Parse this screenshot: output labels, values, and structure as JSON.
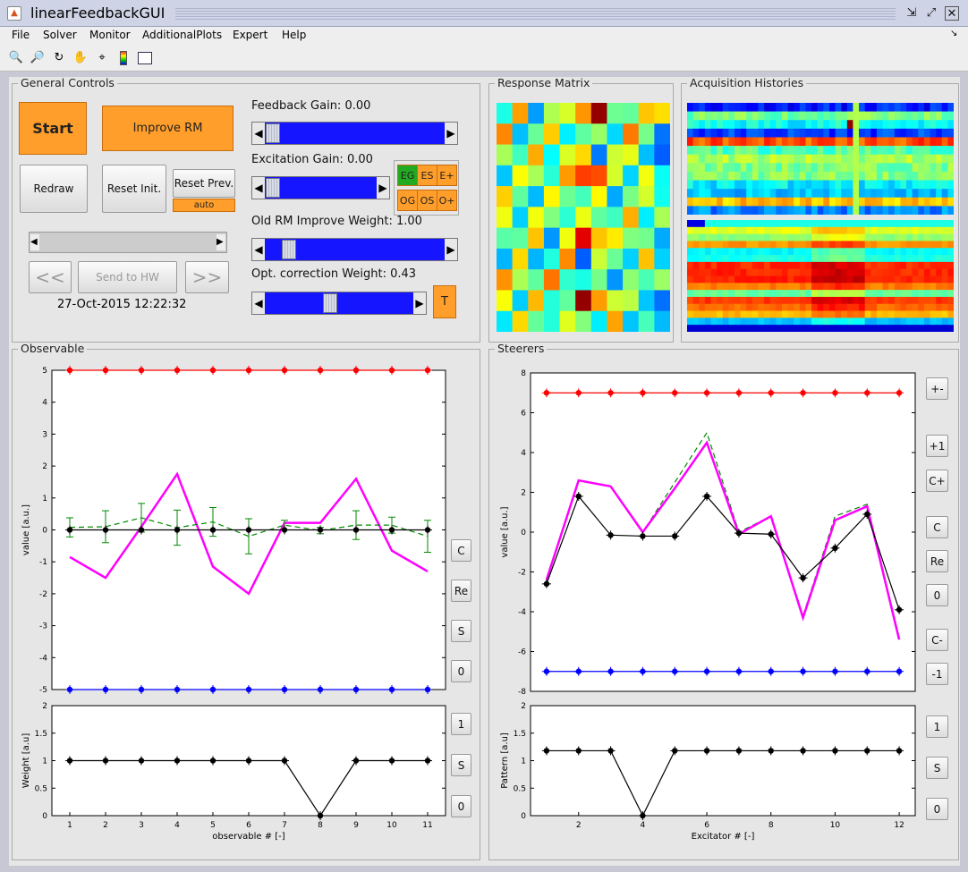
{
  "window": {
    "title": "linearFeedbackGUI",
    "controls": [
      "⇲",
      "⤢",
      "✕"
    ]
  },
  "menu": [
    "File",
    "Solver",
    "Monitor",
    "AdditionalPlots",
    "Expert",
    "Help"
  ],
  "menu_arrow": "↘",
  "toolbar": [
    "zoom-in-icon",
    "zoom-out-icon",
    "rotate-icon",
    "pan-icon",
    "data-cursor-icon",
    "colorbar-icon",
    "legend-icon"
  ],
  "general": {
    "title": "General Controls",
    "start": "Start",
    "improve_rm": "Improve RM",
    "redraw": "Redraw",
    "reset_init": "Reset Init.",
    "reset_prev": "Reset Prev.",
    "auto": "auto",
    "prev": "<<",
    "send": "Send to HW",
    "next": ">>",
    "timestamp": "27-Oct-2015 12:22:32",
    "feedback_gain": "Feedback Gain: 0.00",
    "feedback_value": 0,
    "excitation_gain": "Excitation Gain: 0.00",
    "excitation_value": 0,
    "old_rm": "Old RM Improve Weight: 1.00",
    "old_rm_value": 1,
    "opt_corr": "Opt. correction Weight: 0.43",
    "opt_corr_value": 0.43,
    "eg": "EG",
    "es": "ES",
    "ep": "E+",
    "og": "OG",
    "os": "OS",
    "op": "O+",
    "t": "T"
  },
  "response_matrix": {
    "title": "Response Matrix"
  },
  "acq_histories": {
    "title": "Acquisition Histories"
  },
  "observable": {
    "title": "Observable",
    "side_buttons": [
      "C",
      "Re",
      "S",
      "0"
    ],
    "weight_buttons": [
      "1",
      "S",
      "0"
    ],
    "ylabel": "value [a.u.]",
    "ylabel2": "Weight [a.u]",
    "xlabel": "observable # [-]"
  },
  "steerers": {
    "title": "Steerers",
    "side_buttons": [
      "+-",
      "+1",
      "C+",
      "C",
      "Re",
      "0",
      "C-",
      "-1"
    ],
    "weight_buttons": [
      "1",
      "S",
      "0"
    ],
    "ylabel": "value [a.u.]",
    "ylabel2": "Pattern [a.u]",
    "xlabel": "Excitator # [-]"
  },
  "chart_data": [
    {
      "type": "line",
      "name": "observable-values",
      "x": [
        1,
        2,
        3,
        4,
        5,
        6,
        7,
        8,
        9,
        10,
        11
      ],
      "ylim": [
        -5,
        5
      ],
      "yticks": [
        -5,
        -4,
        -3,
        -2,
        -1,
        0,
        1,
        2,
        3,
        4,
        5
      ],
      "series": [
        {
          "color": "#ff0000",
          "values": [
            5,
            5,
            5,
            5,
            5,
            5,
            5,
            5,
            5,
            5,
            5
          ]
        },
        {
          "color": "#0000ff",
          "values": [
            -5,
            -5,
            -5,
            -5,
            -5,
            -5,
            -5,
            -5,
            -5,
            -5,
            -5
          ]
        },
        {
          "color": "#ff00ff",
          "values": [
            -0.85,
            -1.5,
            0.1,
            1.75,
            -1.15,
            -2.0,
            0.22,
            0.22,
            1.6,
            -0.65,
            -1.3
          ]
        },
        {
          "color": "#008800",
          "dashed": true,
          "values": [
            0.08,
            0.1,
            0.38,
            0.07,
            0.25,
            -0.2,
            0.15,
            -0.02,
            0.15,
            0.15,
            -0.2
          ],
          "err": [
            0.3,
            0.5,
            0.45,
            0.55,
            0.45,
            0.55,
            0.15,
            0.1,
            0.45,
            0.25,
            0.5
          ]
        },
        {
          "color": "#000000",
          "values": [
            0,
            0,
            0,
            0,
            0,
            0,
            0,
            0,
            0,
            0,
            0
          ]
        }
      ]
    },
    {
      "type": "line",
      "name": "observable-weights",
      "x": [
        1,
        2,
        3,
        4,
        5,
        6,
        7,
        8,
        9,
        10,
        11
      ],
      "xticks": [
        1,
        2,
        3,
        4,
        5,
        6,
        7,
        8,
        9,
        10,
        11
      ],
      "ylim": [
        0,
        2
      ],
      "yticks": [
        0,
        0.5,
        1,
        1.5,
        2
      ],
      "series": [
        {
          "color": "#000000",
          "values": [
            1,
            1,
            1,
            1,
            1,
            1,
            1,
            0,
            1,
            1,
            1
          ]
        }
      ]
    },
    {
      "type": "line",
      "name": "steerer-values",
      "x": [
        1,
        2,
        3,
        4,
        5,
        6,
        7,
        8,
        9,
        10,
        11,
        12
      ],
      "ylim": [
        -8,
        8
      ],
      "yticks": [
        -8,
        -6,
        -4,
        -2,
        0,
        2,
        4,
        6,
        8
      ],
      "series": [
        {
          "color": "#ff0000",
          "values": [
            7,
            7,
            7,
            7,
            7,
            7,
            7,
            7,
            7,
            7,
            7,
            7
          ]
        },
        {
          "color": "#0000ff",
          "values": [
            -7,
            -7,
            -7,
            -7,
            -7,
            -7,
            -7,
            -7,
            -7,
            -7,
            -7,
            -7
          ]
        },
        {
          "color": "#008800",
          "dashed": true,
          "values": [
            -2.3,
            2.6,
            2.3,
            0,
            2.5,
            5.0,
            0,
            0.8,
            -4.2,
            0.8,
            1.4,
            -5.3
          ]
        },
        {
          "color": "#ff00ff",
          "values": [
            -2.4,
            2.6,
            2.3,
            0,
            2.2,
            4.5,
            -0.1,
            0.8,
            -4.3,
            0.6,
            1.3,
            -5.4
          ]
        },
        {
          "color": "#000000",
          "values": [
            -2.6,
            1.8,
            -0.15,
            -0.2,
            -0.2,
            1.8,
            -0.05,
            -0.1,
            -2.3,
            -0.8,
            0.9,
            -3.9
          ]
        }
      ]
    },
    {
      "type": "line",
      "name": "steerer-pattern",
      "x": [
        1,
        2,
        3,
        4,
        5,
        6,
        7,
        8,
        9,
        10,
        11,
        12
      ],
      "xticks": [
        2,
        4,
        6,
        8,
        10,
        12
      ],
      "ylim": [
        0,
        2
      ],
      "yticks": [
        0,
        0.5,
        1,
        1.5,
        2
      ],
      "series": [
        {
          "color": "#000000",
          "values": [
            1.18,
            1.18,
            1.18,
            0,
            1.18,
            1.18,
            1.18,
            1.18,
            1.18,
            1.18,
            1.18,
            1.18
          ]
        }
      ]
    }
  ]
}
